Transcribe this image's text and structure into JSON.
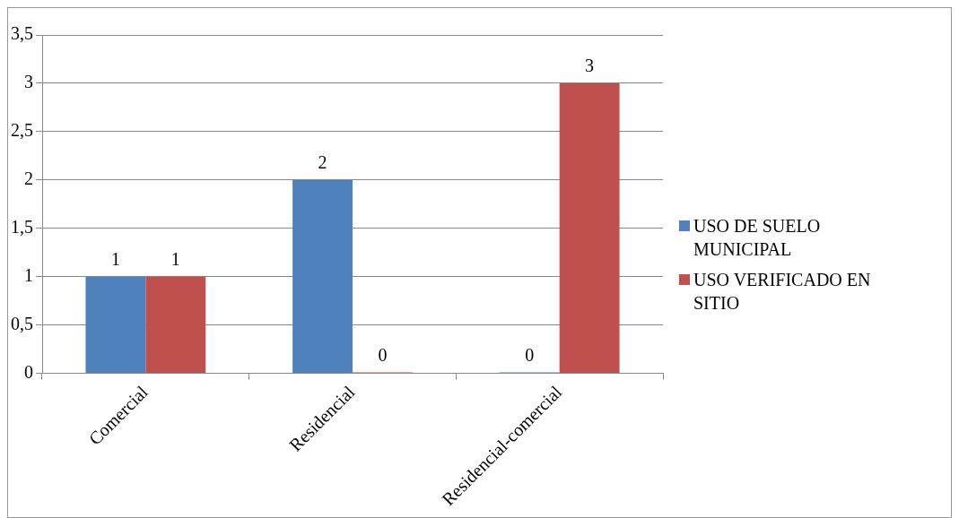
{
  "chart_data": {
    "type": "bar",
    "categories": [
      "Comercial",
      "Residencial",
      "Residencial-comercial"
    ],
    "series": [
      {
        "name": "USO DE SUELO MUNICIPAL",
        "color": "#4f81bd",
        "values": [
          1,
          2,
          0
        ]
      },
      {
        "name": "USO VERIFICADO EN SITIO",
        "color": "#c0504d",
        "values": [
          1,
          0,
          3
        ]
      }
    ],
    "ylim": [
      0,
      3.5
    ],
    "yticks": [
      0,
      {
        "value": 0.5,
        "label": "0,5"
      },
      1,
      {
        "value": 1.5,
        "label": "1,5"
      },
      2,
      {
        "value": 2.5,
        "label": "2,5"
      },
      3,
      {
        "value": 3.5,
        "label": "3,5"
      }
    ],
    "grid": "y",
    "legend": "right",
    "data_labels": true
  }
}
